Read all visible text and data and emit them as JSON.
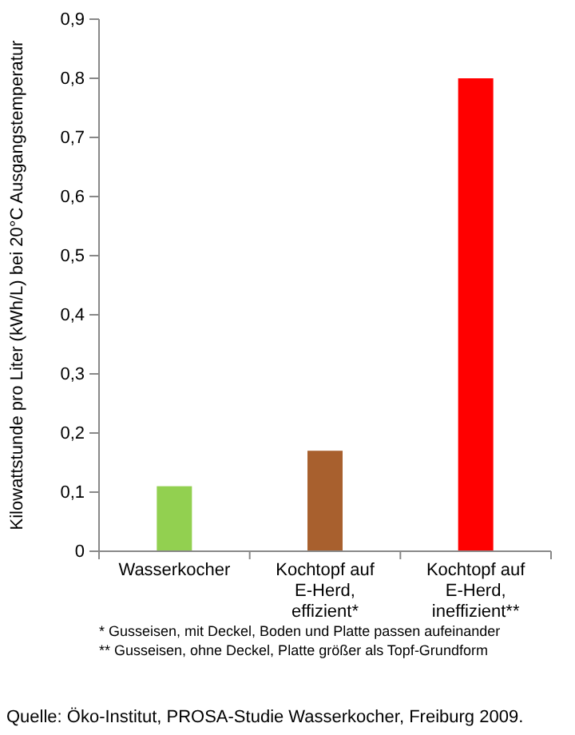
{
  "chart_data": {
    "type": "bar",
    "categories": [
      "Wasserkocher",
      "Kochtopf auf E-Herd, effizient*",
      "Kochtopf auf E-Herd, ineffizient**"
    ],
    "values": [
      0.11,
      0.17,
      0.8
    ],
    "colors": [
      "#92d050",
      "#a8602e",
      "#ff0000"
    ],
    "ylabel": "Kilowattstunde pro Liter (kWh/L) bei 20°C Ausgangstemperatur",
    "ylim": [
      0,
      0.9
    ],
    "yticks": [
      {
        "value": 0,
        "label": "0"
      },
      {
        "value": 0.1,
        "label": "0,1"
      },
      {
        "value": 0.2,
        "label": "0,2"
      },
      {
        "value": 0.3,
        "label": "0,3"
      },
      {
        "value": 0.4,
        "label": "0,4"
      },
      {
        "value": 0.5,
        "label": "0,5"
      },
      {
        "value": 0.6,
        "label": "0,6"
      },
      {
        "value": 0.7,
        "label": "0,7"
      },
      {
        "value": 0.8,
        "label": "0,8"
      },
      {
        "value": 0.9,
        "label": "0,9"
      }
    ],
    "grid": false,
    "annotations": [
      "* Gusseisen, mit Deckel, Boden und Platte passen aufeinander",
      "** Gusseisen, ohne Deckel, Platte größer als Topf-Grundform",
      "Quelle: Öko-Institut, PROSA-Studie Wasserkocher, Freiburg 2009."
    ]
  }
}
